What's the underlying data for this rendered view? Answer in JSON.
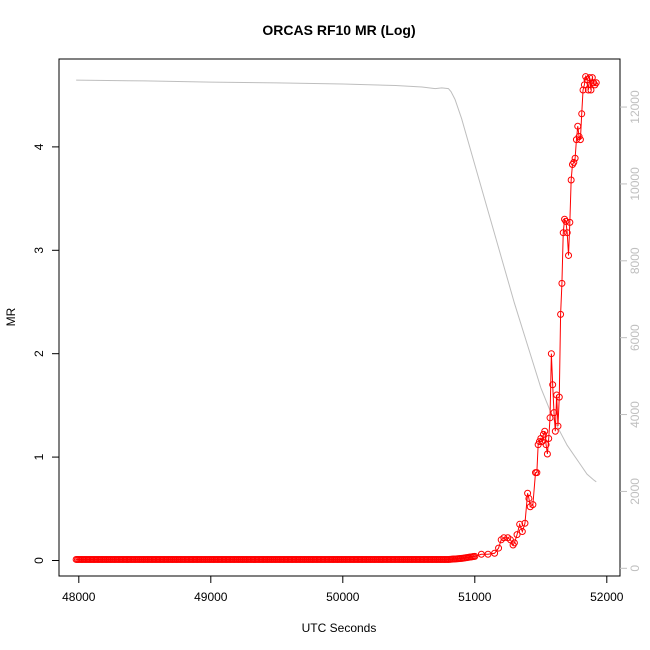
{
  "chart_data": {
    "type": "line",
    "title": "ORCAS RF10 MR (Log)",
    "xlabel": "UTC Seconds",
    "ylabel": "MR",
    "xlim": [
      47850,
      52100
    ],
    "ylim": [
      -0.15,
      4.85
    ],
    "y2lim": [
      -200,
      13250
    ],
    "x_ticks": [
      48000,
      49000,
      50000,
      51000,
      52000
    ],
    "y_ticks": [
      0,
      1,
      2,
      3,
      4
    ],
    "y2_ticks": [
      0,
      2000,
      4000,
      6000,
      8000,
      10000,
      12000
    ],
    "grid": false,
    "legend": "none",
    "colors": {
      "mr": "#ff0000",
      "altitude": "#bebebe",
      "right_axis": "#bfbfbf"
    },
    "series": [
      {
        "axis": "left",
        "style": "points-and-lines",
        "x": [
          47980,
          50100,
          50800,
          50900,
          51000,
          51050,
          51100,
          51150,
          51180,
          51200,
          51220,
          51250,
          51270,
          51290,
          51300,
          51320,
          51340,
          51360,
          51380,
          51400,
          51410,
          51420,
          51440,
          51460,
          51470,
          51480,
          51490,
          51500,
          51510,
          51520,
          51530,
          51540,
          51550,
          51560,
          51570,
          51580,
          51590,
          51600,
          51610,
          51620,
          51630,
          51640,
          51650,
          51660,
          51670,
          51680,
          51690,
          51700,
          51710,
          51720,
          51730,
          51740,
          51750,
          51760,
          51770,
          51780,
          51790,
          51800,
          51810,
          51820,
          51830,
          51840,
          51850,
          51860,
          51870,
          51880,
          51890,
          51900,
          51910,
          51920
        ],
        "y": [
          0.01,
          0.01,
          0.01,
          0.02,
          0.04,
          0.06,
          0.06,
          0.07,
          0.12,
          0.2,
          0.22,
          0.22,
          0.2,
          0.15,
          0.17,
          0.25,
          0.35,
          0.28,
          0.36,
          0.65,
          0.6,
          0.52,
          0.54,
          0.85,
          0.85,
          1.12,
          1.15,
          1.18,
          1.15,
          1.22,
          1.25,
          1.12,
          1.03,
          1.18,
          1.38,
          2.0,
          1.7,
          1.43,
          1.25,
          1.6,
          1.3,
          1.58,
          2.38,
          2.68,
          3.17,
          3.3,
          3.28,
          3.17,
          2.95,
          3.27,
          3.68,
          3.83,
          3.85,
          3.89,
          4.07,
          4.2,
          4.1,
          4.07,
          4.32,
          4.55,
          4.6,
          4.68,
          4.65,
          4.55,
          4.67,
          4.55,
          4.67,
          4.62,
          4.6,
          4.62
        ]
      },
      {
        "axis": "right",
        "style": "line",
        "x": [
          47980,
          48500,
          49000,
          49500,
          50000,
          50400,
          50600,
          50700,
          50750,
          50800,
          50820,
          50850,
          50900,
          51000,
          51100,
          51200,
          51300,
          51400,
          51500,
          51600,
          51700,
          51800,
          51850,
          51900,
          51920
        ],
        "y": [
          12700,
          12680,
          12650,
          12630,
          12600,
          12560,
          12520,
          12480,
          12500,
          12480,
          12400,
          12200,
          11700,
          10500,
          9300,
          8100,
          6900,
          5800,
          4700,
          3850,
          3200,
          2700,
          2450,
          2300,
          2250
        ]
      }
    ]
  }
}
